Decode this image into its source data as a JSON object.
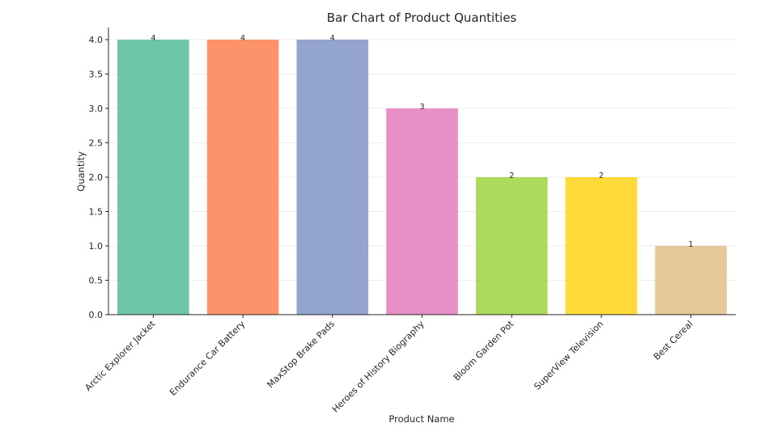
{
  "chart_data": {
    "type": "bar",
    "title": "Bar Chart of Product Quantities",
    "xlabel": "Product Name",
    "ylabel": "Quantity",
    "ylim": [
      0,
      4.0
    ],
    "yticks": [
      "0.0",
      "0.5",
      "1.0",
      "1.5",
      "2.0",
      "2.5",
      "3.0",
      "3.5",
      "4.0"
    ],
    "grid": "horizontal",
    "categories": [
      "Arctic Explorer Jacket",
      "Endurance Car Battery",
      "MaxStop Brake Pads",
      "Heroes of History Biography",
      "Bloom Garden Pot",
      "SuperView Television",
      "Best Cereal"
    ],
    "values": [
      4,
      4,
      4,
      3,
      2,
      2,
      1
    ],
    "data_labels": [
      "4",
      "4",
      "4",
      "3",
      "2",
      "2",
      "1"
    ],
    "colors": [
      "#66c2a5",
      "#fc8d62",
      "#8da0cb",
      "#e78ac3",
      "#a6d854",
      "#ffd92f",
      "#e5c494"
    ]
  }
}
